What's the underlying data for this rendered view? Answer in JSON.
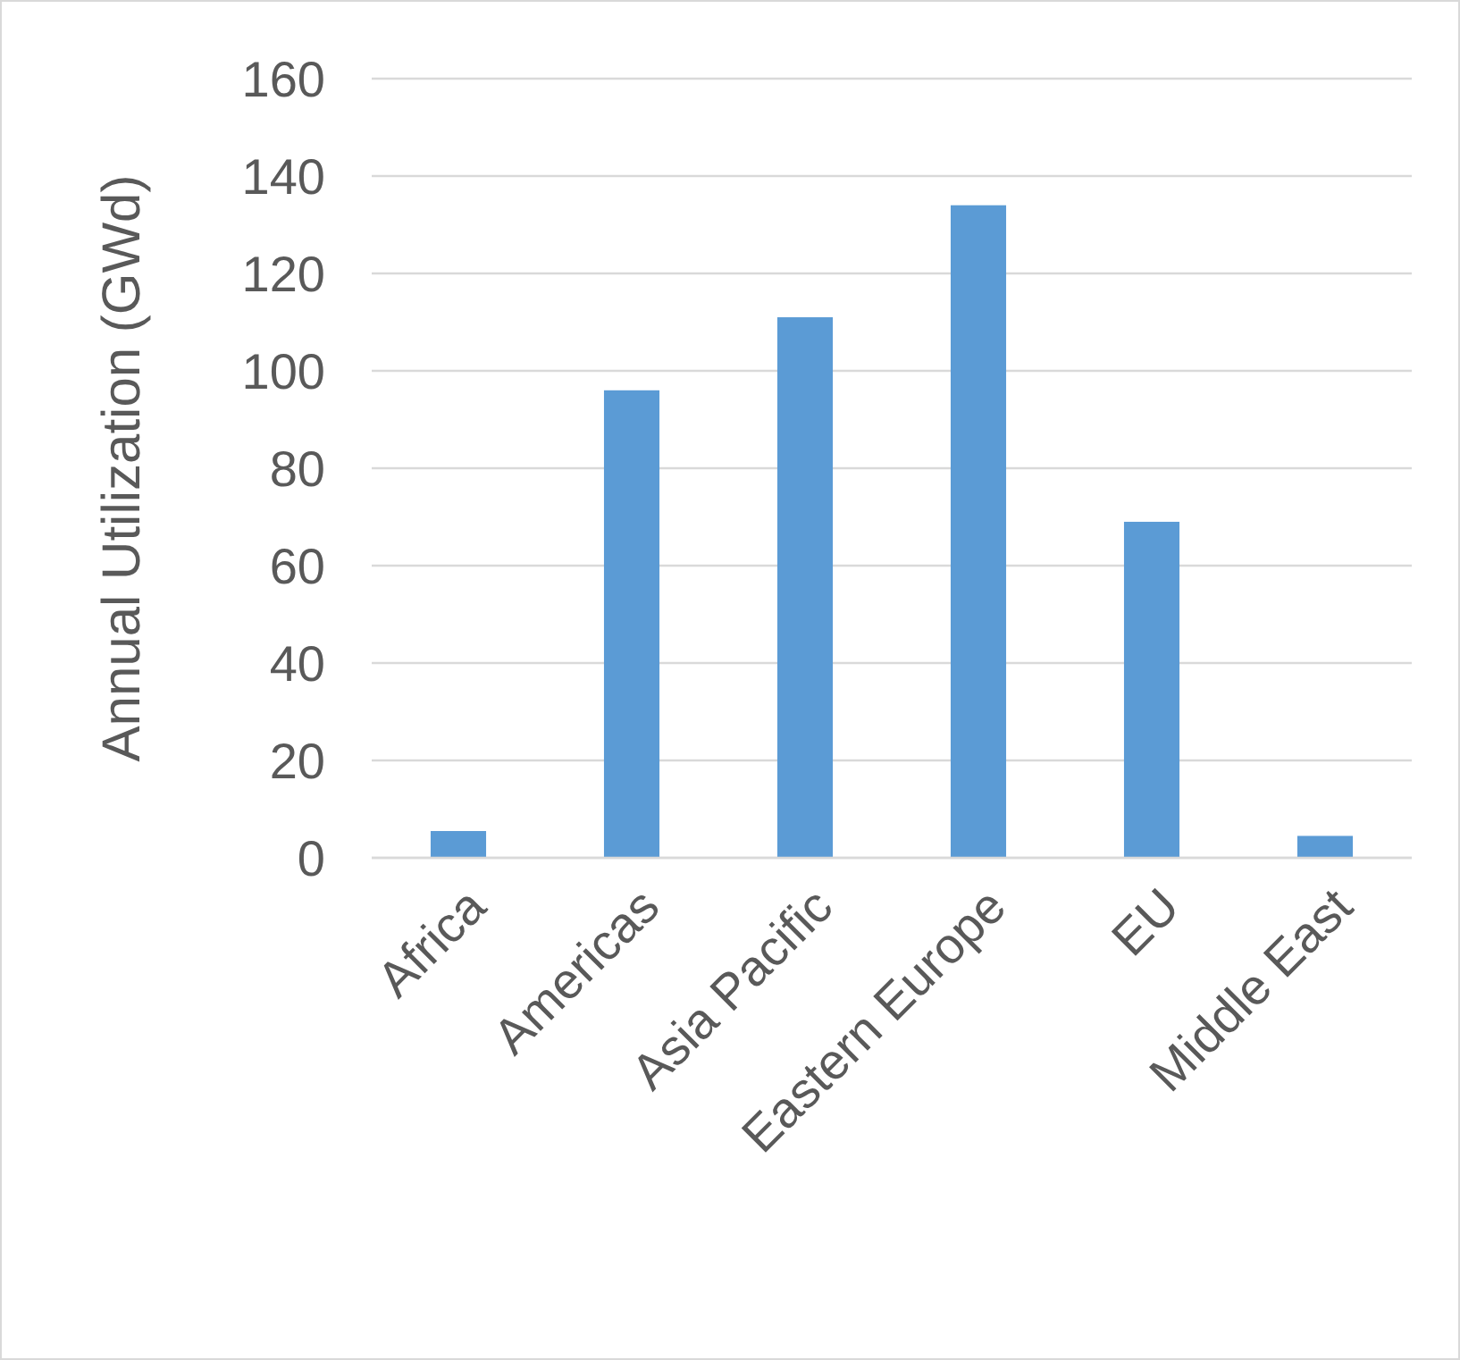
{
  "chart_data": {
    "type": "bar",
    "ylabel": "Annual Utilization (GWd)",
    "categories": [
      "Africa",
      "Americas",
      "Asia Pacific",
      "Eastern Europe",
      "EU",
      "Middle East"
    ],
    "values": [
      5.5,
      96,
      111,
      134,
      69,
      4.5
    ],
    "color": "#5b9bd5",
    "ylim": [
      0,
      160
    ],
    "yticks": [
      0,
      20,
      40,
      60,
      80,
      100,
      120,
      140,
      160
    ],
    "grid": "y"
  }
}
